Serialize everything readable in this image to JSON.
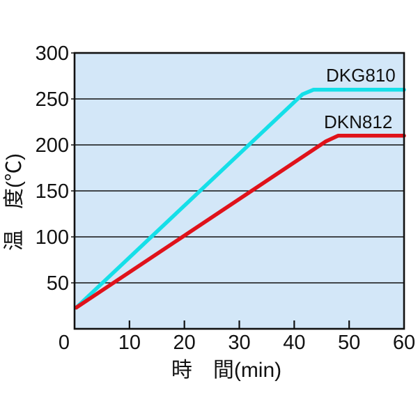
{
  "chart_data": {
    "type": "line",
    "title": "",
    "xlabel": "時　間(min)",
    "ylabel": "温　度(℃)",
    "xlim": [
      0,
      60
    ],
    "ylim": [
      0,
      300
    ],
    "x_ticks": [
      0,
      10,
      20,
      30,
      40,
      50,
      60
    ],
    "y_ticks": [
      50,
      100,
      150,
      200,
      250,
      300
    ],
    "grid": "horizontal",
    "legend_position": "inline-labels-above-lines",
    "colors": {
      "plot_bg": "#d3e7f8",
      "axis": "#111111",
      "dkg810": "#15dfe8",
      "dkn812": "#e0121a"
    },
    "series": [
      {
        "name": "DKG810",
        "color_key": "dkg810",
        "description": "heats ~5.7 deg C/min from ~23 deg C, reaches plateau of 260 deg C at ~43 min",
        "points": [
          [
            0.3,
            23
          ],
          [
            41.5,
            255
          ],
          [
            43.5,
            260
          ],
          [
            60,
            260
          ]
        ]
      },
      {
        "name": "DKN812",
        "color_key": "dkn812",
        "description": "heats ~4.1 deg C/min from ~23 deg C, reaches plateau of 210 deg C at ~48 min",
        "points": [
          [
            0.3,
            23
          ],
          [
            45.8,
            204
          ],
          [
            48,
            210
          ],
          [
            60,
            210
          ]
        ]
      }
    ]
  }
}
